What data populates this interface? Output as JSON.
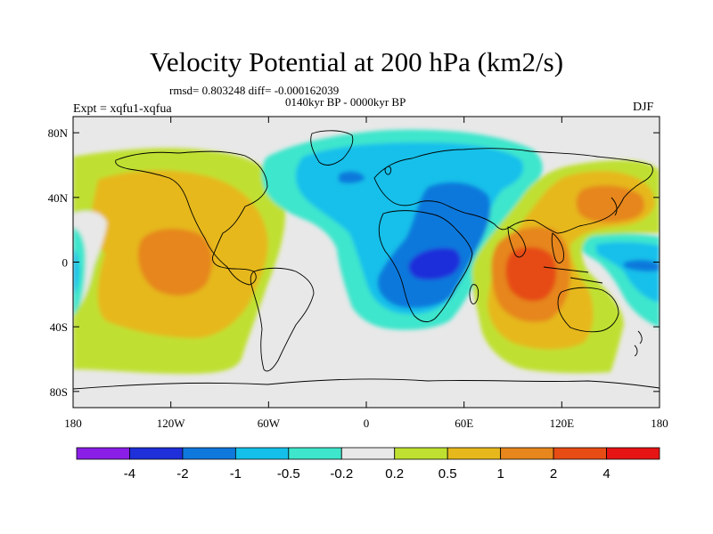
{
  "header": {
    "title": "Velocity Potential at 200 hPa (km2/s)",
    "stats": "rmsd= 0.803248 diff= -0.000162039",
    "period": "0140kyr BP - 0000kyr BP",
    "experiment": "Expt = xqfu1-xqfua",
    "season": "DJF"
  },
  "map": {
    "projection": "cylindrical-equidistant",
    "lon_range": [
      -180,
      180
    ],
    "lat_range": [
      -90,
      90
    ],
    "lon_ticks": [
      {
        "value": -180,
        "label": "180"
      },
      {
        "value": -120,
        "label": "120W"
      },
      {
        "value": -60,
        "label": "60W"
      },
      {
        "value": 0,
        "label": "0"
      },
      {
        "value": 60,
        "label": "60E"
      },
      {
        "value": 120,
        "label": "120E"
      },
      {
        "value": 180,
        "label": "180"
      }
    ],
    "lat_ticks": [
      {
        "value": 80,
        "label": "80N"
      },
      {
        "value": 40,
        "label": "40N"
      },
      {
        "value": 0,
        "label": "0"
      },
      {
        "value": -40,
        "label": "40S"
      },
      {
        "value": -80,
        "label": "80S"
      }
    ]
  },
  "colorbar": {
    "colors": [
      "#8a1ee6",
      "#1f2fd9",
      "#0f78dc",
      "#14c0ea",
      "#3ee6cc",
      "#e8e8e8",
      "#bfe030",
      "#e6b81c",
      "#e6861c",
      "#e64c14",
      "#e61414"
    ],
    "labels": [
      "-4",
      "-2",
      "-1",
      "-0.5",
      "-0.2",
      "0.2",
      "0.5",
      "1",
      "2",
      "4"
    ]
  }
}
